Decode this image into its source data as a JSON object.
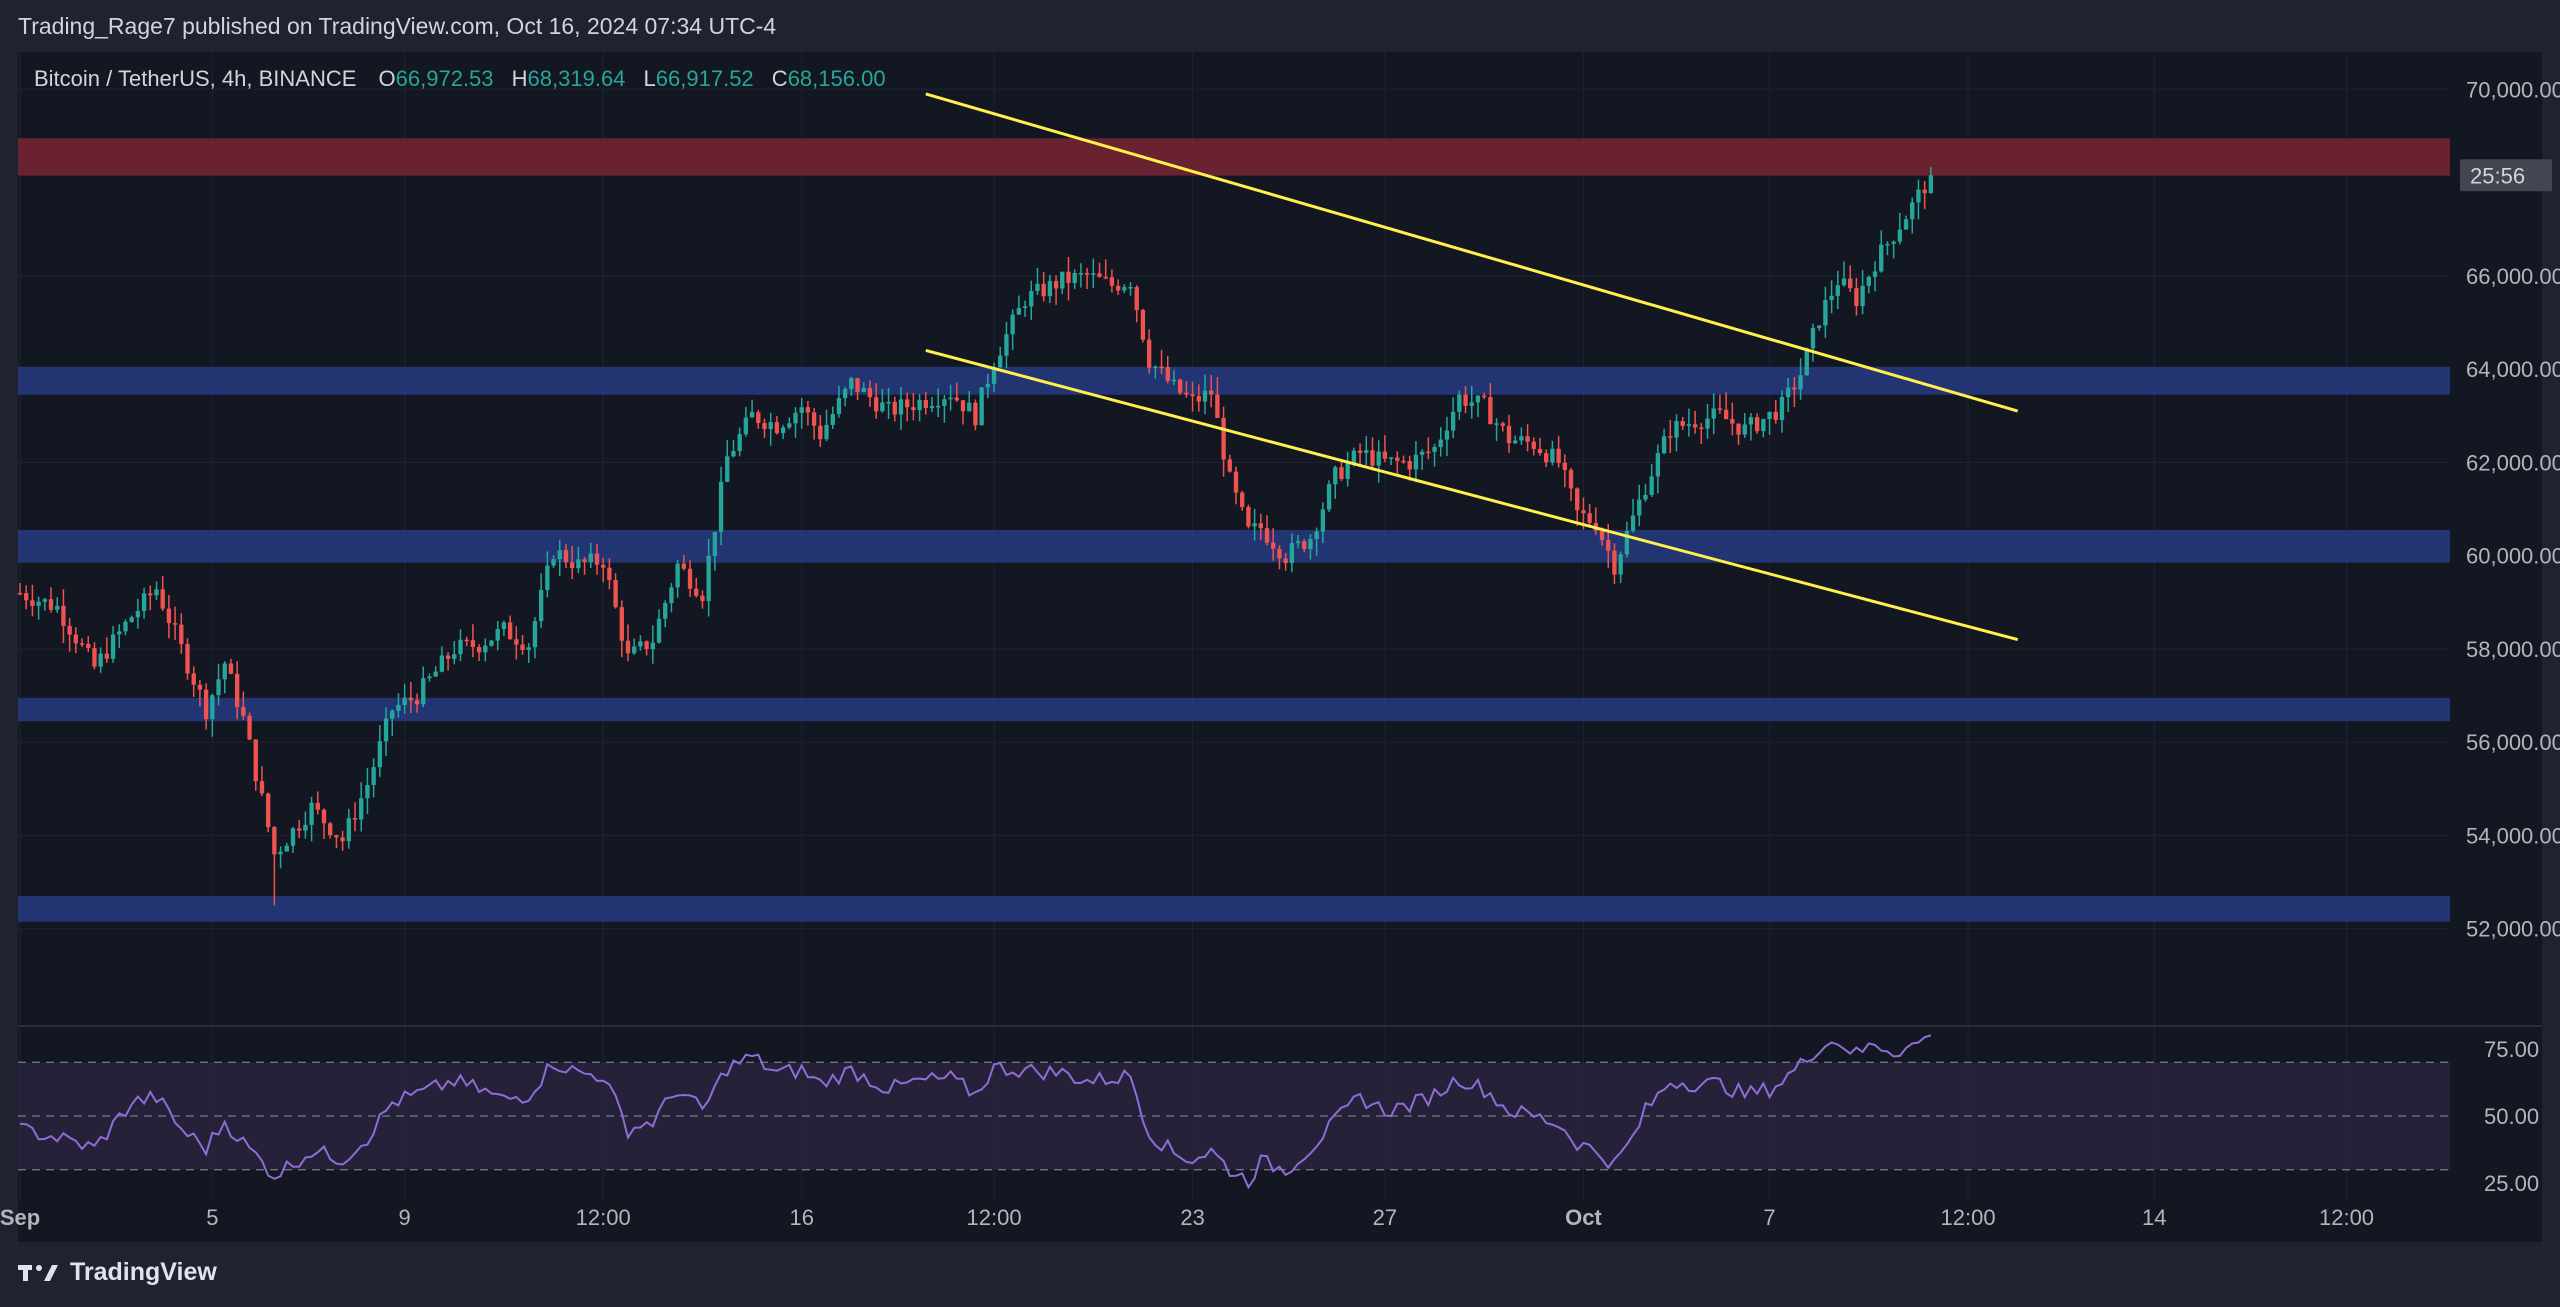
{
  "header": {
    "publisher_line": "Trading_Rage7 published on TradingView.com, Oct 16, 2024 07:34 UTC-4"
  },
  "legend": {
    "symbol": "Bitcoin / TetherUS, 4h, BINANCE",
    "open_label": "O",
    "open_value": "66,972.53",
    "high_label": "H",
    "high_value": "68,319.64",
    "low_label": "L",
    "low_value": "66,917.52",
    "close_label": "C",
    "close_value": "68,156.00"
  },
  "price_tag": {
    "label": "25:56"
  },
  "footer": {
    "brand": "TradingView"
  },
  "colors": {
    "up": "#26a69a",
    "down": "#ef5350",
    "trendline": "#fff04d",
    "support_zone": "#2a3f8f",
    "resistance_zone": "#7a2433",
    "rsi_line": "#8f6cd6",
    "rsi_band": "#2b2440"
  },
  "chart_data": [
    {
      "type": "candlestick",
      "title": "",
      "y_axis": {
        "ticks": [
          "70,000.00",
          "66,000.00",
          "64,000.00",
          "62,000.00",
          "60,000.00",
          "58,000.00",
          "56,000.00",
          "54,000.00",
          "52,000.00"
        ],
        "tick_values": [
          70000,
          66000,
          64000,
          62000,
          60000,
          58000,
          56000,
          54000,
          52000
        ],
        "range": [
          50000,
          70800
        ]
      },
      "x_axis": {
        "ticks": [
          "Sep",
          "5",
          "9",
          "12:00",
          "16",
          "12:00",
          "23",
          "27",
          "Oct",
          "7",
          "12:00",
          "14",
          "12:00"
        ],
        "bold_ticks": [
          "Sep",
          "Oct"
        ],
        "tick_times": [
          0,
          31,
          62,
          94,
          126,
          157,
          189,
          220,
          252,
          282,
          314,
          344,
          375
        ]
      },
      "close_path": [
        [
          0,
          59200
        ],
        [
          6,
          58900
        ],
        [
          12,
          57600
        ],
        [
          18,
          58700
        ],
        [
          22,
          59300
        ],
        [
          26,
          58000
        ],
        [
          30,
          56700
        ],
        [
          33,
          57700
        ],
        [
          36,
          56500
        ],
        [
          41,
          53600
        ],
        [
          47,
          54600
        ],
        [
          52,
          53900
        ],
        [
          56,
          55100
        ],
        [
          60,
          56700
        ],
        [
          64,
          57000
        ],
        [
          70,
          58000
        ],
        [
          74,
          58100
        ],
        [
          78,
          58400
        ],
        [
          82,
          58100
        ],
        [
          86,
          60100
        ],
        [
          90,
          59800
        ],
        [
          94,
          59900
        ],
        [
          98,
          57800
        ],
        [
          102,
          58200
        ],
        [
          106,
          59800
        ],
        [
          110,
          59200
        ],
        [
          114,
          62100
        ],
        [
          118,
          63000
        ],
        [
          122,
          62800
        ],
        [
          126,
          63200
        ],
        [
          129,
          62600
        ],
        [
          134,
          63700
        ],
        [
          140,
          63100
        ],
        [
          145,
          63300
        ],
        [
          150,
          63500
        ],
        [
          154,
          63000
        ],
        [
          157,
          64200
        ],
        [
          162,
          65500
        ],
        [
          168,
          65900
        ],
        [
          172,
          66000
        ],
        [
          176,
          65800
        ],
        [
          179,
          65900
        ],
        [
          182,
          64200
        ],
        [
          186,
          63600
        ],
        [
          189,
          63300
        ],
        [
          192,
          63500
        ],
        [
          195,
          61600
        ],
        [
          198,
          60500
        ],
        [
          200,
          60600
        ],
        [
          204,
          60000
        ],
        [
          208,
          60400
        ],
        [
          212,
          61700
        ],
        [
          216,
          62200
        ],
        [
          220,
          62000
        ],
        [
          224,
          62000
        ],
        [
          228,
          62300
        ],
        [
          232,
          63400
        ],
        [
          236,
          63200
        ],
        [
          240,
          62500
        ],
        [
          244,
          62400
        ],
        [
          248,
          62000
        ],
        [
          251,
          60900
        ],
        [
          254,
          60700
        ],
        [
          257,
          59800
        ],
        [
          260,
          60800
        ],
        [
          262,
          61500
        ],
        [
          266,
          62700
        ],
        [
          270,
          62900
        ],
        [
          274,
          63000
        ],
        [
          278,
          62700
        ],
        [
          282,
          63000
        ],
        [
          284,
          63200
        ],
        [
          287,
          63900
        ],
        [
          290,
          65100
        ],
        [
          293,
          65900
        ],
        [
          296,
          65500
        ],
        [
          299,
          66300
        ],
        [
          302,
          66900
        ],
        [
          305,
          67500
        ],
        [
          308,
          68156
        ]
      ],
      "min_low": 52500,
      "max_high": 68319.64,
      "trendlines": [
        {
          "name": "upper",
          "from": [
            146,
            69900
          ],
          "to": [
            322,
            63100
          ]
        },
        {
          "name": "lower",
          "from": [
            146,
            64400
          ],
          "to": [
            322,
            58200
          ]
        }
      ],
      "zones": [
        {
          "name": "resistance",
          "from": 68150,
          "to": 68950
        },
        {
          "name": "support",
          "from": 63450,
          "to": 64050
        },
        {
          "name": "support",
          "from": 59850,
          "to": 60550
        },
        {
          "name": "support",
          "from": 56450,
          "to": 56950
        },
        {
          "name": "support",
          "from": 52150,
          "to": 52700
        }
      ],
      "last_price": 68156
    },
    {
      "type": "line",
      "title": "",
      "y_axis": {
        "ticks": [
          "75.00",
          "50.00",
          "25.00"
        ],
        "tick_values": [
          75,
          50,
          25
        ],
        "range": [
          18,
          82
        ]
      },
      "bands": [
        70,
        50,
        30
      ],
      "series": [
        {
          "points": [
            [
              0,
              45
            ],
            [
              6,
              42
            ],
            [
              12,
              38
            ],
            [
              18,
              55
            ],
            [
              22,
              57
            ],
            [
              26,
              45
            ],
            [
              30,
              38
            ],
            [
              33,
              48
            ],
            [
              36,
              40
            ],
            [
              41,
              28
            ],
            [
              47,
              37
            ],
            [
              52,
              34
            ],
            [
              56,
              42
            ],
            [
              60,
              55
            ],
            [
              64,
              58
            ],
            [
              70,
              63
            ],
            [
              74,
              60
            ],
            [
              78,
              56
            ],
            [
              82,
              58
            ],
            [
              86,
              70
            ],
            [
              90,
              66
            ],
            [
              94,
              65
            ],
            [
              98,
              45
            ],
            [
              102,
              48
            ],
            [
              106,
              60
            ],
            [
              110,
              52
            ],
            [
              114,
              68
            ],
            [
              118,
              72
            ],
            [
              122,
              66
            ],
            [
              126,
              67
            ],
            [
              129,
              62
            ],
            [
              134,
              67
            ],
            [
              140,
              60
            ],
            [
              145,
              63
            ],
            [
              150,
              64
            ],
            [
              154,
              58
            ],
            [
              157,
              68
            ],
            [
              162,
              67
            ],
            [
              168,
              66
            ],
            [
              172,
              63
            ],
            [
              176,
              64
            ],
            [
              179,
              65
            ],
            [
              182,
              44
            ],
            [
              186,
              36
            ],
            [
              189,
              34
            ],
            [
              192,
              37
            ],
            [
              195,
              30
            ],
            [
              198,
              26
            ],
            [
              200,
              33
            ],
            [
              204,
              30
            ],
            [
              208,
              38
            ],
            [
              212,
              48
            ],
            [
              216,
              57
            ],
            [
              220,
              52
            ],
            [
              224,
              54
            ],
            [
              228,
              58
            ],
            [
              232,
              64
            ],
            [
              236,
              60
            ],
            [
              240,
              52
            ],
            [
              244,
              50
            ],
            [
              248,
              47
            ],
            [
              251,
              40
            ],
            [
              254,
              37
            ],
            [
              257,
              32
            ],
            [
              260,
              42
            ],
            [
              262,
              52
            ],
            [
              266,
              63
            ],
            [
              270,
              62
            ],
            [
              274,
              62
            ],
            [
              278,
              58
            ],
            [
              282,
              60
            ],
            [
              284,
              63
            ],
            [
              287,
              69
            ],
            [
              290,
              76
            ],
            [
              293,
              78
            ],
            [
              296,
              73
            ],
            [
              299,
              77
            ],
            [
              302,
              74
            ],
            [
              305,
              76
            ],
            [
              308,
              80
            ]
          ]
        }
      ]
    }
  ]
}
